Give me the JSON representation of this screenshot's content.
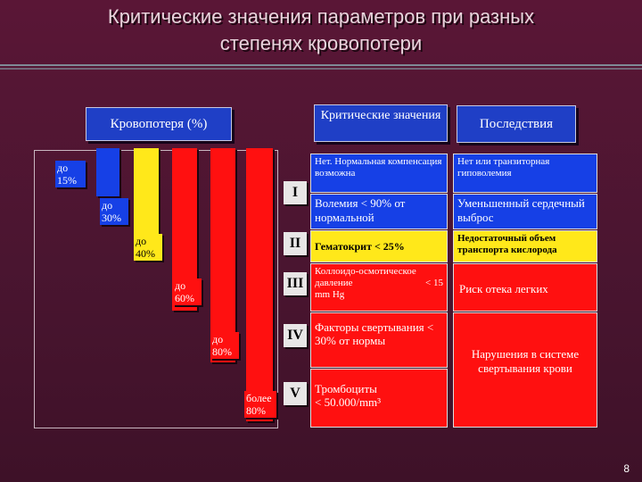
{
  "title": {
    "line1": "Критические значения параметров при разных",
    "line2": "степенях кровопотери"
  },
  "headers": {
    "blood_loss": "Кровопотеря (%)",
    "critical_values": "Критические значения",
    "consequences": "Последствия"
  },
  "loss_bars": [
    {
      "label1": "до",
      "label2": "15%",
      "color": "blue"
    },
    {
      "label1": "до",
      "label2": "30%",
      "color": "blue"
    },
    {
      "label1": "до",
      "label2": "40%",
      "color": "yellow"
    },
    {
      "label1": "до",
      "label2": "60%",
      "color": "red"
    },
    {
      "label1": "до",
      "label2": "80%",
      "color": "red"
    },
    {
      "label1": "более",
      "label2": "80%",
      "color": "red"
    }
  ],
  "stages": [
    "I",
    "II",
    "III",
    "IV",
    "V"
  ],
  "critical": [
    {
      "text": "Нет. Нормальная компенсация возможна"
    },
    {
      "text": "Волемия < 90% от нормальной"
    },
    {
      "text": "Гематокрит < 25%"
    },
    {
      "text_a": "Коллоидо-осмотическое давление",
      "text_b": "< 15",
      "text_c": "mm Hg"
    },
    {
      "text": "Факторы свертывания < 30% от нормы"
    },
    {
      "text_a": "Тромбоциты",
      "text_b": "< 50.000/mm³"
    }
  ],
  "consequences": [
    {
      "text": "Нет или транзиторная гиповолемия"
    },
    {
      "text": "Уменьшенный сердечный выброс"
    },
    {
      "text": "Недостаточный объем транспорта кислорода"
    },
    {
      "text": "Риск отека легких"
    },
    {
      "text": "Нарушения в системе свертывания крови"
    }
  ],
  "page_number": "8",
  "colors": {
    "blue": "#1640e6",
    "yellow": "#ffe81a",
    "red": "#ff1010"
  }
}
